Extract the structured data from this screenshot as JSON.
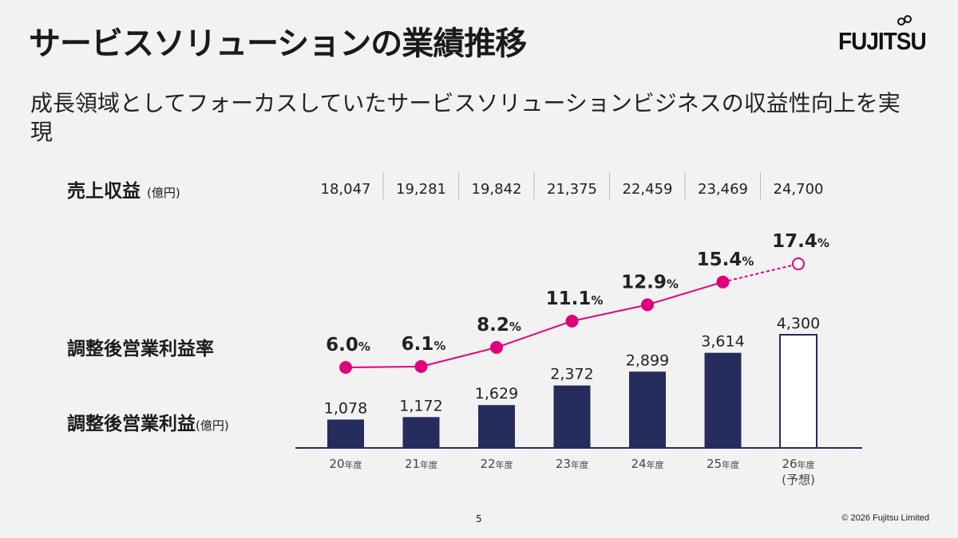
{
  "title": "サービスソリューションの業績推移",
  "logo": "FUJITSU",
  "subtitle": "成長領域としてフォーカスしていたサービスソリューションビジネスの収益性向上を実現",
  "labels": {
    "revenue": "売上収益",
    "revenue_unit": "(億円)",
    "margin": "調整後営業利益率",
    "profit": "調整後営業利益",
    "profit_unit": "(億円)"
  },
  "footer": {
    "page": "5",
    "copyright": "© 2026 Fujitsu Limited"
  },
  "colors": {
    "bar": "#262c5b",
    "forecast_bar_fill": "#ffffff",
    "line": "#e0007a",
    "background": "#f2f2f2"
  },
  "chart_data": {
    "type": "bar+line",
    "categories": [
      {
        "year": "20",
        "suffix": "年度",
        "note": ""
      },
      {
        "year": "21",
        "suffix": "年度",
        "note": ""
      },
      {
        "year": "22",
        "suffix": "年度",
        "note": ""
      },
      {
        "year": "23",
        "suffix": "年度",
        "note": ""
      },
      {
        "year": "24",
        "suffix": "年度",
        "note": ""
      },
      {
        "year": "25",
        "suffix": "年度",
        "note": ""
      },
      {
        "year": "26",
        "suffix": "年度",
        "note": "(予想)"
      }
    ],
    "revenue": [
      "18,047",
      "19,281",
      "19,842",
      "21,375",
      "22,459",
      "23,469",
      "24,700"
    ],
    "profit": {
      "values": [
        1078,
        1172,
        1629,
        2372,
        2899,
        3614,
        4300
      ],
      "labels": [
        "1,078",
        "1,172",
        "1,629",
        "2,372",
        "2,899",
        "3,614",
        "4,300"
      ],
      "forecast_index": 6
    },
    "margin": {
      "values": [
        6.0,
        6.1,
        8.2,
        11.1,
        12.9,
        15.4,
        17.4
      ],
      "labels": [
        "6.0",
        "6.1",
        "8.2",
        "11.1",
        "12.9",
        "15.4",
        "17.4"
      ],
      "unit": "%",
      "forecast_index": 6
    }
  }
}
